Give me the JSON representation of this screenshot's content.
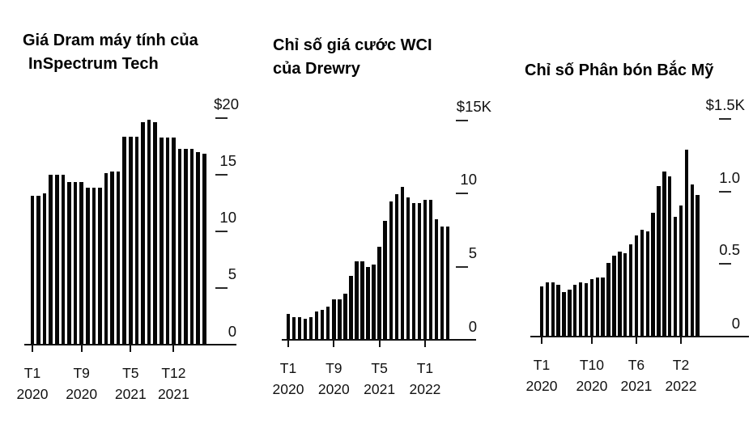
{
  "figure": {
    "background": "#ffffff",
    "bar_color": "#050505",
    "text_color": "#000000"
  },
  "chart_data": [
    {
      "type": "bar",
      "title": "Giá Dram máy tính của InSpectrum Tech",
      "title_lines": [
        "Giá Dram máy tính của",
        "InSpectrum Tech"
      ],
      "categories": [
        "T1 2020",
        "T2 2020",
        "T3 2020",
        "T4 2020",
        "T5 2020",
        "T6 2020",
        "T7 2020",
        "T8 2020",
        "T9 2020",
        "T10 2020",
        "T11 2020",
        "T12 2020",
        "T1 2021",
        "T2 2021",
        "T3 2021",
        "T4 2021",
        "T5 2021",
        "T6 2021",
        "T7 2021",
        "T8 2021",
        "T9 2021",
        "T10 2021",
        "T11 2021",
        "T12 2021",
        "T1 2022",
        "T2 2022",
        "T3 2022",
        "T4 2022",
        "T5 2022"
      ],
      "values": [
        13.1,
        13.1,
        13.3,
        14.9,
        14.9,
        14.9,
        14.3,
        14.3,
        14.3,
        13.8,
        13.8,
        13.8,
        15.1,
        15.2,
        15.2,
        18.3,
        18.3,
        18.3,
        19.6,
        19.8,
        19.6,
        18.2,
        18.2,
        18.2,
        17.2,
        17.2,
        17.2,
        16.9,
        16.8
      ],
      "ylim": [
        0,
        20
      ],
      "yticks": [
        {
          "label": "$20",
          "value": 20
        },
        {
          "label": "15",
          "value": 15
        },
        {
          "label": "10",
          "value": 10
        },
        {
          "label": "5",
          "value": 5
        },
        {
          "label": "0",
          "value": 0
        }
      ],
      "xticks": [
        {
          "line1": "T1",
          "line2": "2020",
          "index": 0
        },
        {
          "line1": "T9",
          "line2": "2020",
          "index": 8
        },
        {
          "line1": "T5",
          "line2": "2021",
          "index": 16
        },
        {
          "line1": "T12",
          "line2": "2021",
          "index": 23
        }
      ],
      "legend": null,
      "grid": false
    },
    {
      "type": "bar",
      "title": "Chỉ số giá cước WCI của Drewry",
      "title_lines": [
        "Chỉ số giá cước WCI",
        "của Drewry"
      ],
      "categories": [
        "T1 2020",
        "T2 2020",
        "T3 2020",
        "T4 2020",
        "T5 2020",
        "T6 2020",
        "T7 2020",
        "T8 2020",
        "T9 2020",
        "T10 2020",
        "T11 2020",
        "T12 2020",
        "T1 2021",
        "T2 2021",
        "T3 2021",
        "T4 2021",
        "T5 2021",
        "T6 2021",
        "T7 2021",
        "T8 2021",
        "T9 2021",
        "T10 2021",
        "T11 2021",
        "T12 2021",
        "T1 2022",
        "T2 2022",
        "T3 2022",
        "T4 2022",
        "T5 2022"
      ],
      "values": [
        1.7,
        1.5,
        1.5,
        1.4,
        1.5,
        1.9,
        2.0,
        2.2,
        2.7,
        2.7,
        3.1,
        4.3,
        5.3,
        5.3,
        4.9,
        5.1,
        6.3,
        8.1,
        9.4,
        9.9,
        10.4,
        9.7,
        9.3,
        9.3,
        9.5,
        9.5,
        8.2,
        7.7,
        7.7
      ],
      "ylim": [
        0,
        15
      ],
      "yticks": [
        {
          "label": "$15K",
          "value": 15
        },
        {
          "label": "10",
          "value": 10
        },
        {
          "label": "5",
          "value": 5
        },
        {
          "label": "0",
          "value": 0
        }
      ],
      "xticks": [
        {
          "line1": "T1",
          "line2": "2020",
          "index": 0
        },
        {
          "line1": "T9",
          "line2": "2020",
          "index": 8
        },
        {
          "line1": "T5",
          "line2": "2021",
          "index": 16
        },
        {
          "line1": "T1",
          "line2": "2022",
          "index": 24
        }
      ],
      "legend": null,
      "grid": false
    },
    {
      "type": "bar",
      "title": "Chỉ số Phân bón Bắc Mỹ",
      "title_lines": [
        "Chỉ số Phân bón Bắc Mỹ"
      ],
      "categories": [
        "T1 2020",
        "T2 2020",
        "T3 2020",
        "T4 2020",
        "T5 2020",
        "T6 2020",
        "T7 2020",
        "T8 2020",
        "T9 2020",
        "T10 2020",
        "T11 2020",
        "T12 2020",
        "T1 2021",
        "T2 2021",
        "T3 2021",
        "T4 2021",
        "T5 2021",
        "T6 2021",
        "T7 2021",
        "T8 2021",
        "T9 2021",
        "T10 2021",
        "T11 2021",
        "T12 2021",
        "T1 2022",
        "T2 2022",
        "T3 2022",
        "T4 2022",
        "T5 2022"
      ],
      "values": [
        0.34,
        0.37,
        0.37,
        0.35,
        0.3,
        0.32,
        0.35,
        0.37,
        0.36,
        0.39,
        0.4,
        0.4,
        0.5,
        0.55,
        0.58,
        0.57,
        0.63,
        0.69,
        0.73,
        0.72,
        0.85,
        1.03,
        1.13,
        1.1,
        0.82,
        0.9,
        1.28,
        1.04,
        0.97
      ],
      "ylim": [
        0,
        1.5
      ],
      "yticks": [
        {
          "label": "$1.5K",
          "value": 1.5
        },
        {
          "label": "1.0",
          "value": 1.0
        },
        {
          "label": "0.5",
          "value": 0.5
        },
        {
          "label": "0",
          "value": 0
        }
      ],
      "xticks": [
        {
          "line1": "T1",
          "line2": "2020",
          "index": 0
        },
        {
          "line1": "T10",
          "line2": "2020",
          "index": 9
        },
        {
          "line1": "T6",
          "line2": "2021",
          "index": 17
        },
        {
          "line1": "T2",
          "line2": "2022",
          "index": 25
        }
      ],
      "legend": null,
      "grid": false
    }
  ]
}
